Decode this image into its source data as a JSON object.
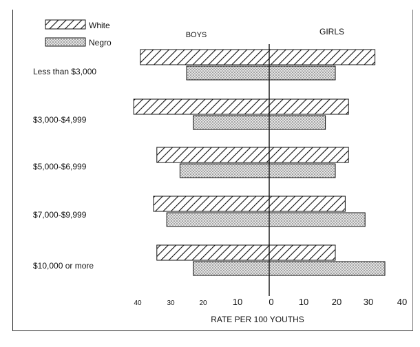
{
  "chart_data": {
    "type": "bar",
    "orientation": "horizontal-butterfly",
    "categories": [
      "Less than $3,000",
      "$3,000-$4,999",
      "$5,000-$6,999",
      "$7,000-$9,999",
      "$10,000 or more"
    ],
    "panels": {
      "left": "BOYS",
      "right": "GIRLS"
    },
    "xlabel": "RATE PER 100 YOUTHS",
    "xticks": [
      "40",
      "30",
      "20",
      "10",
      "0",
      "10",
      "20",
      "30",
      "40"
    ],
    "xlim": [
      -40,
      40
    ],
    "legend": {
      "placement": "top-left",
      "entries": [
        "White",
        "Negro"
      ]
    },
    "series": [
      {
        "name": "White",
        "color": "#111111",
        "pattern": "diagonal-hatch",
        "boys": [
          39,
          41,
          34,
          35,
          34
        ],
        "girls": [
          32,
          24,
          24,
          23,
          20
        ]
      },
      {
        "name": "Negro",
        "color": "#666666",
        "pattern": "stipple",
        "boys": [
          25,
          23,
          27,
          31,
          23
        ],
        "girls": [
          20,
          17,
          20,
          29,
          35
        ]
      }
    ],
    "grid": false
  }
}
